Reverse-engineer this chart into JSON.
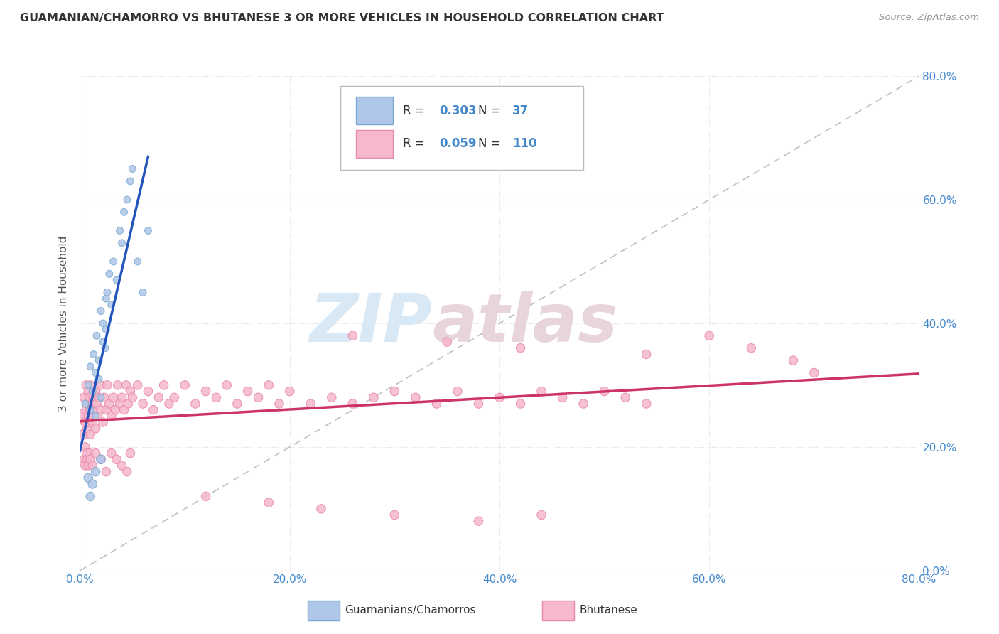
{
  "title": "GUAMANIAN/CHAMORRO VS BHUTANESE 3 OR MORE VEHICLES IN HOUSEHOLD CORRELATION CHART",
  "source": "Source: ZipAtlas.com",
  "ylabel": "3 or more Vehicles in Household",
  "xlim": [
    0,
    0.8
  ],
  "ylim": [
    0,
    0.8
  ],
  "xticks": [
    0.0,
    0.2,
    0.4,
    0.6,
    0.8
  ],
  "yticks": [
    0.0,
    0.2,
    0.4,
    0.6,
    0.8
  ],
  "xtick_labels": [
    "0.0%",
    "20.0%",
    "40.0%",
    "60.0%",
    "80.0%"
  ],
  "ytick_labels": [
    "0.0%",
    "20.0%",
    "40.0%",
    "60.0%",
    "80.0%"
  ],
  "legend_labels": [
    "Guamanians/Chamorros",
    "Bhutanese"
  ],
  "blue_R": "0.303",
  "blue_N": "37",
  "pink_R": "0.059",
  "pink_N": "110",
  "blue_color": "#aec6e8",
  "blue_edge": "#7aaad0",
  "blue_line": "#2255bb",
  "pink_color": "#f5b8cc",
  "pink_edge": "#e888aa",
  "pink_line": "#cc3366",
  "ref_line_color": "#c0c0c0",
  "watermark_color": "#d8e8f5",
  "watermark_color2": "#e8d5dc",
  "background": "#ffffff",
  "grid_color": "#dddddd",
  "title_color": "#333333",
  "source_color": "#999999",
  "axis_label_color": "#4488cc",
  "blue_x": [
    0.005,
    0.008,
    0.01,
    0.01,
    0.012,
    0.013,
    0.015,
    0.015,
    0.016,
    0.018,
    0.018,
    0.02,
    0.02,
    0.022,
    0.022,
    0.024,
    0.025,
    0.025,
    0.026,
    0.028,
    0.03,
    0.032,
    0.035,
    0.038,
    0.04,
    0.042,
    0.045,
    0.048,
    0.05,
    0.055,
    0.06,
    0.065,
    0.008,
    0.01,
    0.012,
    0.015,
    0.02
  ],
  "blue_y": [
    0.27,
    0.3,
    0.33,
    0.26,
    0.29,
    0.35,
    0.32,
    0.25,
    0.38,
    0.31,
    0.34,
    0.42,
    0.28,
    0.37,
    0.4,
    0.36,
    0.44,
    0.39,
    0.45,
    0.48,
    0.43,
    0.5,
    0.47,
    0.55,
    0.53,
    0.58,
    0.6,
    0.63,
    0.65,
    0.5,
    0.45,
    0.55,
    0.15,
    0.12,
    0.14,
    0.16,
    0.18
  ],
  "blue_sizes": [
    50,
    50,
    50,
    50,
    50,
    50,
    50,
    50,
    50,
    50,
    50,
    50,
    50,
    50,
    50,
    50,
    50,
    50,
    50,
    50,
    50,
    50,
    50,
    50,
    50,
    50,
    50,
    50,
    50,
    50,
    50,
    50,
    80,
    80,
    80,
    80,
    80
  ],
  "pink_x": [
    0.002,
    0.003,
    0.004,
    0.005,
    0.005,
    0.006,
    0.006,
    0.007,
    0.007,
    0.008,
    0.008,
    0.009,
    0.009,
    0.01,
    0.01,
    0.01,
    0.012,
    0.012,
    0.013,
    0.013,
    0.014,
    0.015,
    0.015,
    0.016,
    0.017,
    0.018,
    0.02,
    0.02,
    0.022,
    0.023,
    0.025,
    0.026,
    0.028,
    0.03,
    0.032,
    0.034,
    0.036,
    0.038,
    0.04,
    0.042,
    0.044,
    0.046,
    0.048,
    0.05,
    0.055,
    0.06,
    0.065,
    0.07,
    0.075,
    0.08,
    0.085,
    0.09,
    0.1,
    0.11,
    0.12,
    0.13,
    0.14,
    0.15,
    0.16,
    0.17,
    0.18,
    0.19,
    0.2,
    0.22,
    0.24,
    0.26,
    0.28,
    0.3,
    0.32,
    0.34,
    0.36,
    0.38,
    0.4,
    0.42,
    0.44,
    0.46,
    0.48,
    0.5,
    0.52,
    0.54,
    0.004,
    0.005,
    0.006,
    0.007,
    0.008,
    0.009,
    0.01,
    0.012,
    0.015,
    0.02,
    0.025,
    0.03,
    0.035,
    0.04,
    0.045,
    0.048,
    0.26,
    0.35,
    0.42,
    0.54,
    0.6,
    0.64,
    0.68,
    0.7,
    0.12,
    0.18,
    0.23,
    0.3,
    0.38,
    0.44
  ],
  "pink_y": [
    0.25,
    0.22,
    0.28,
    0.24,
    0.2,
    0.26,
    0.3,
    0.23,
    0.27,
    0.25,
    0.29,
    0.24,
    0.28,
    0.26,
    0.22,
    0.3,
    0.27,
    0.24,
    0.28,
    0.25,
    0.26,
    0.29,
    0.23,
    0.27,
    0.25,
    0.28,
    0.26,
    0.3,
    0.24,
    0.28,
    0.26,
    0.3,
    0.27,
    0.25,
    0.28,
    0.26,
    0.3,
    0.27,
    0.28,
    0.26,
    0.3,
    0.27,
    0.29,
    0.28,
    0.3,
    0.27,
    0.29,
    0.26,
    0.28,
    0.3,
    0.27,
    0.28,
    0.3,
    0.27,
    0.29,
    0.28,
    0.3,
    0.27,
    0.29,
    0.28,
    0.3,
    0.27,
    0.29,
    0.27,
    0.28,
    0.27,
    0.28,
    0.29,
    0.28,
    0.27,
    0.29,
    0.27,
    0.28,
    0.27,
    0.29,
    0.28,
    0.27,
    0.29,
    0.28,
    0.27,
    0.18,
    0.17,
    0.19,
    0.18,
    0.17,
    0.19,
    0.18,
    0.17,
    0.19,
    0.18,
    0.16,
    0.19,
    0.18,
    0.17,
    0.16,
    0.19,
    0.38,
    0.37,
    0.36,
    0.35,
    0.38,
    0.36,
    0.34,
    0.32,
    0.12,
    0.11,
    0.1,
    0.09,
    0.08,
    0.09
  ],
  "pink_sizes": [
    200,
    100,
    80,
    80,
    80,
    80,
    80,
    80,
    80,
    80,
    80,
    80,
    80,
    80,
    80,
    80,
    80,
    80,
    80,
    80,
    80,
    80,
    80,
    80,
    80,
    80,
    80,
    80,
    80,
    80,
    80,
    80,
    80,
    80,
    80,
    80,
    80,
    80,
    80,
    80,
    80,
    80,
    80,
    80,
    80,
    80,
    80,
    80,
    80,
    80,
    80,
    80,
    80,
    80,
    80,
    80,
    80,
    80,
    80,
    80,
    80,
    80,
    80,
    80,
    80,
    80,
    80,
    80,
    80,
    80,
    80,
    80,
    80,
    80,
    80,
    80,
    80,
    80,
    80,
    80,
    80,
    80,
    80,
    80,
    80,
    80,
    80,
    80,
    80,
    80,
    80,
    80,
    80,
    80,
    80,
    80,
    80,
    80,
    80,
    80,
    80,
    80,
    80,
    80,
    80,
    80,
    80,
    80,
    80,
    80
  ]
}
